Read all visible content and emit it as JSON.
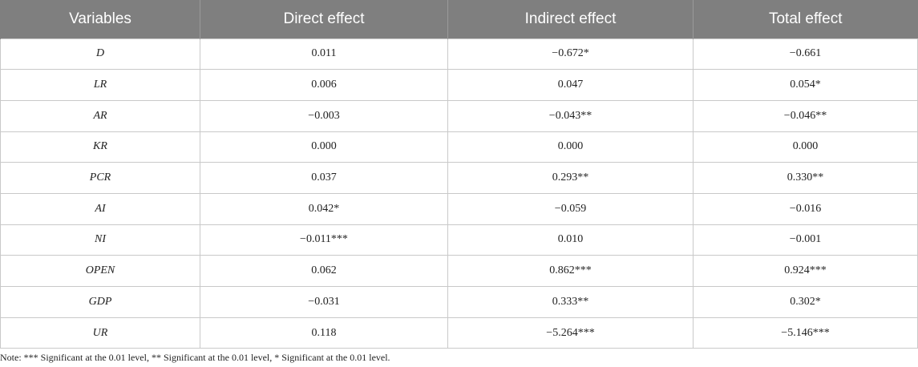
{
  "table": {
    "headers": [
      "Variables",
      "Direct effect",
      "Indirect effect",
      "Total effect"
    ],
    "rows": [
      [
        "D",
        "0.011",
        "−0.672*",
        "−0.661"
      ],
      [
        "LR",
        "0.006",
        "0.047",
        "0.054*"
      ],
      [
        "AR",
        "−0.003",
        "−0.043**",
        "−0.046**"
      ],
      [
        "KR",
        "0.000",
        "0.000",
        "0.000"
      ],
      [
        "PCR",
        "0.037",
        "0.293**",
        "0.330**"
      ],
      [
        "AI",
        "0.042*",
        "−0.059",
        "−0.016"
      ],
      [
        "NI",
        "−0.011***",
        "0.010",
        "−0.001"
      ],
      [
        "OPEN",
        "0.062",
        "0.862***",
        "0.924***"
      ],
      [
        "GDP",
        "−0.031",
        "0.333**",
        "0.302*"
      ],
      [
        "UR",
        "0.118",
        "−5.264***",
        "−5.146***"
      ]
    ]
  },
  "note": "Note: *** Significant at the 0.01 level, ** Significant at the 0.01 level, * Significant at the 0.01 level."
}
